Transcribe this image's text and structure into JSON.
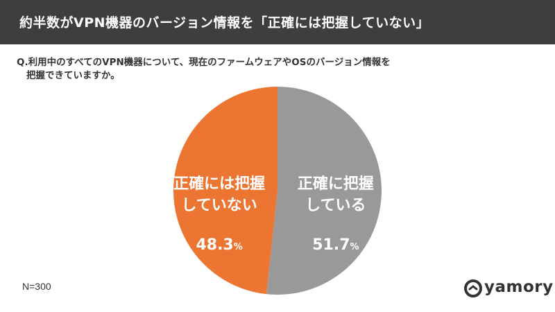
{
  "header": {
    "title": "約半数がVPN機器のバージョン情報を「正確には把握していない」"
  },
  "question": {
    "line1": "Q.利用中のすべてのVPN機器について、現在のファームウェアやOSのバージョン情報を",
    "line2": "把握できていますか。"
  },
  "chart_data": {
    "type": "pie",
    "slices": [
      {
        "label_lines": [
          "正確に把握",
          "している"
        ],
        "value": 51.7,
        "value_text": "51.7",
        "unit": "%",
        "color": "#999999"
      },
      {
        "label_lines": [
          "正確には把握",
          "していない"
        ],
        "value": 48.3,
        "value_text": "48.3",
        "unit": "%",
        "color": "#ec7532"
      }
    ],
    "start_direction": "top",
    "direction": "clockwise"
  },
  "footer": {
    "n_label": "N=300",
    "logo_text": "yamory",
    "logo_icon": "yamory-logo-icon"
  }
}
